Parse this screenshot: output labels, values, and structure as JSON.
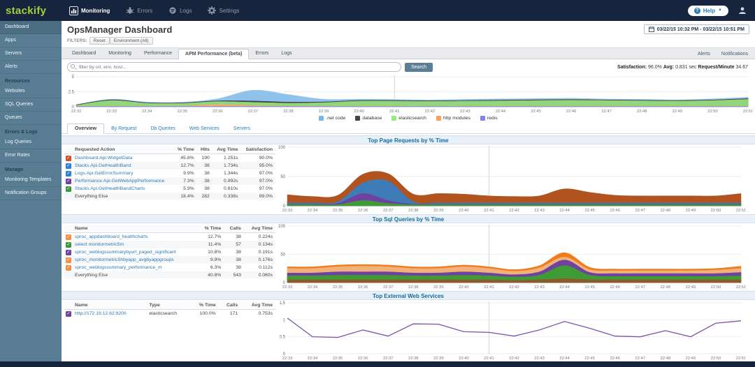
{
  "topbar": {
    "logo": "stackify",
    "nav": [
      {
        "label": "Monitoring",
        "icon": "chart-icon",
        "active": true
      },
      {
        "label": "Errors",
        "icon": "bug-icon",
        "active": false
      },
      {
        "label": "Logs",
        "icon": "logs-icon",
        "active": false
      },
      {
        "label": "Settings",
        "icon": "gear-icon",
        "active": false
      }
    ],
    "help_label": "Help"
  },
  "sidebar": {
    "items": [
      {
        "label": "Dashboard",
        "type": "link",
        "active": true
      },
      {
        "label": "Apps",
        "type": "link"
      },
      {
        "label": "Servers",
        "type": "link"
      },
      {
        "label": "Alerts",
        "type": "link"
      },
      {
        "label": "Resources",
        "type": "header"
      },
      {
        "label": "Websites",
        "type": "link"
      },
      {
        "label": "SQL Queries",
        "type": "link"
      },
      {
        "label": "Queues",
        "type": "link"
      },
      {
        "label": "Errors & Logs",
        "type": "header"
      },
      {
        "label": "Log Queries",
        "type": "link"
      },
      {
        "label": "Error Rates",
        "type": "link"
      },
      {
        "label": "Manage",
        "type": "header"
      },
      {
        "label": "Monitoring Templates",
        "type": "link"
      },
      {
        "label": "Notification Groups",
        "type": "link"
      }
    ]
  },
  "header": {
    "title": "OpsManager Dashboard",
    "date_range": "03/22/15 10:32 PM - 03/22/15 10:51 PM",
    "filters_label": "FILTERS:",
    "filter_buttons": [
      "Reset",
      "Environment (All)"
    ]
  },
  "tabs": {
    "items": [
      "Dashboard",
      "Monitoring",
      "Performance",
      "APM Performance (beta)",
      "Errors",
      "Logs"
    ],
    "active": "APM Performance (beta)",
    "right_links": [
      "Alerts",
      "Notifications"
    ]
  },
  "search": {
    "placeholder": "filter by url, env, host...",
    "button_label": "Search"
  },
  "stats": {
    "satisfaction_label": "Satisfaction:",
    "satisfaction_value": "96.0%",
    "avg_label": "Avg:",
    "avg_value": "0.831 sec",
    "rpm_label": "Request/Minute",
    "rpm_value": "34.67"
  },
  "subtabs": [
    "Overview",
    "By Request",
    "Db Queries",
    "Web Services",
    "Servers"
  ],
  "sections": [
    {
      "title": "Top Page Requests by % Time",
      "columns": [
        "Requested Action",
        "% Time",
        "Hits",
        "Avg Time",
        "Satisfaction"
      ],
      "align": [
        "l",
        "r",
        "r",
        "r",
        "r"
      ],
      "rows": [
        {
          "check": "#c9512c",
          "link": true,
          "cells": [
            "Dashboard.Api.WidgetData",
            "45.8%",
            "190",
            "1.251s",
            "90.0%"
          ]
        },
        {
          "check": "#2f7ed8",
          "link": true,
          "cells": [
            "Stacks.Api.GetHealthBand",
            "12.7%",
            "38",
            "1.734s",
            "95.0%"
          ]
        },
        {
          "check": "#2f7ed8",
          "link": true,
          "cells": [
            "Logs.Api.GetErrorSummary",
            "9.9%",
            "38",
            "1.344s",
            "97.0%"
          ]
        },
        {
          "check": "#6f42a0",
          "link": true,
          "cells": [
            "Performance.Api.GetWebAppPerformance",
            "7.3%",
            "38",
            "0.992s",
            "97.0%"
          ]
        },
        {
          "check": "#3c9a3c",
          "link": true,
          "cells": [
            "Stacks.Api.GetHealthBandCharts",
            "5.9%",
            "38",
            "0.810s",
            "97.0%"
          ]
        },
        {
          "check": null,
          "link": false,
          "cells": [
            "Everything Else",
            "18.4%",
            "282",
            "0.338s",
            "99.0%"
          ]
        }
      ]
    },
    {
      "title": "Top Sql Queries by % Time",
      "columns": [
        "Name",
        "% Time",
        "Calls",
        "Avg Time"
      ],
      "align": [
        "l",
        "r",
        "r",
        "r"
      ],
      "rows": [
        {
          "check": "#f28f43",
          "link": true,
          "cells": [
            "sproc_appdashboard_healthcharts",
            "12.7%",
            "38",
            "0.224s"
          ]
        },
        {
          "check": "#3c9a3c",
          "link": true,
          "cells": [
            "select monitormetric5m",
            "11.4%",
            "57",
            "0.134s"
          ]
        },
        {
          "check": "#6f42a0",
          "link": true,
          "cells": [
            "sproc_weblogssummarybyurl_paged_significant",
            "10.8%",
            "38",
            "0.191s"
          ]
        },
        {
          "check": "#f28f43",
          "link": true,
          "cells": [
            "sproc_monitormetric5hbyapp_avgbyappgroups",
            "9.9%",
            "38",
            "0.176s"
          ]
        },
        {
          "check": "#f28f43",
          "link": true,
          "cells": [
            "sproc_weblogssummary_performance_m",
            "6.3%",
            "38",
            "0.112s"
          ]
        },
        {
          "check": null,
          "link": false,
          "cells": [
            "Everything Else",
            "40.8%",
            "543",
            "0.060s"
          ]
        }
      ]
    },
    {
      "title": "Top External Web Services",
      "columns": [
        "Name",
        "Type",
        "% Time",
        "Calls",
        "Avg Time"
      ],
      "align": [
        "l",
        "l",
        "r",
        "r",
        "r"
      ],
      "rows": [
        {
          "check": "#6f42a0",
          "link": true,
          "cells": [
            "http://172.19.12.62:9200",
            "elasticsearch",
            "100.0%",
            "171",
            "0.753s"
          ]
        }
      ]
    }
  ],
  "chart_data": [
    {
      "id": "overview",
      "type": "area",
      "stacked": true,
      "title": "",
      "categories": [
        "22:32",
        "22:33",
        "22:34",
        "22:35",
        "22:36",
        "22:37",
        "22:38",
        "22:39",
        "22:40",
        "22:41",
        "22:42",
        "22:43",
        "22:44",
        "22:45",
        "22:46",
        "22:47",
        "22:48",
        "22:49",
        "22:50",
        "22:51"
      ],
      "ylim": [
        0,
        5
      ],
      "yticks": [
        0,
        2.5,
        5
      ],
      "cursor_x": "22:41",
      "smooth": true,
      "legend_position": "bottom",
      "legend": [
        {
          "label": ".net code",
          "color": "#7cb5ec"
        },
        {
          "label": "database",
          "color": "#434348"
        },
        {
          "label": "elasticsearch",
          "color": "#90ed7d"
        },
        {
          "label": "http modules",
          "color": "#f7a35c"
        },
        {
          "label": "redis",
          "color": "#8085e9"
        }
      ],
      "series": [
        {
          "name": "redis",
          "color": "#908fe0",
          "values": [
            0.07,
            0.07,
            0.07,
            0.07,
            0.07,
            0.07,
            0.07,
            0.07,
            0.07,
            0.07,
            0.07,
            0.07,
            0.07,
            0.07,
            0.07,
            0.07,
            0.07,
            0.07,
            0.07,
            0.07
          ]
        },
        {
          "name": "http modules",
          "color": "#f5ab6b",
          "values": [
            0.02,
            0.02,
            0.02,
            0.05,
            0.3,
            0.12,
            0.03,
            0.02,
            0.02,
            0.02,
            0.02,
            0.02,
            0.02,
            0.02,
            0.02,
            0.02,
            0.02,
            0.02,
            0.02,
            0.02
          ]
        },
        {
          "name": "elasticsearch",
          "color": "#93d57a",
          "values": [
            0.15,
            0.95,
            0.5,
            0.45,
            0.5,
            0.55,
            0.5,
            0.6,
            0.85,
            0.85,
            0.8,
            0.85,
            0.9,
            0.95,
            1.0,
            0.95,
            0.9,
            0.85,
            0.95,
            1.15
          ]
        },
        {
          "name": "database",
          "color": "#3f4045",
          "values": [
            0.08,
            0.12,
            0.1,
            0.1,
            0.12,
            0.22,
            0.18,
            0.12,
            0.12,
            0.12,
            0.1,
            0.1,
            0.12,
            0.12,
            0.12,
            0.1,
            0.1,
            0.1,
            0.1,
            0.12
          ]
        },
        {
          "name": ".net code",
          "color": "#8fc3ec",
          "values": [
            0.05,
            0.1,
            0.08,
            0.08,
            0.35,
            1.8,
            1.25,
            0.45,
            0.2,
            0.15,
            0.15,
            0.2,
            0.2,
            0.2,
            0.2,
            0.15,
            0.15,
            0.12,
            0.18,
            0.22
          ]
        }
      ]
    },
    {
      "id": "page-requests",
      "type": "area",
      "stacked": true,
      "title": "Top Page Requests by % Time",
      "categories": [
        "22:33",
        "22:34",
        "22:35",
        "22:36",
        "22:37",
        "22:38",
        "22:39",
        "22:40",
        "22:41",
        "22:42",
        "22:43",
        "22:44",
        "22:45",
        "22:46",
        "22:47",
        "22:48",
        "22:49",
        "22:50",
        "22:51"
      ],
      "ylim": [
        0,
        100
      ],
      "yticks": [
        0,
        50,
        100
      ],
      "cursor_x": "22:41",
      "smooth": true,
      "series": [
        {
          "name": "Stacks.Api.GetHealthBandCharts",
          "color": "#3f9c35",
          "values": [
            2,
            2,
            2,
            9,
            4,
            2,
            2,
            2,
            2,
            2,
            2,
            2,
            2,
            2,
            2,
            2,
            2,
            2,
            2
          ]
        },
        {
          "name": "Performance.Api.GetWebAppPerformance",
          "color": "#6f42a0",
          "values": [
            1,
            1,
            2,
            12,
            5,
            1,
            1,
            1,
            1,
            1,
            1,
            1,
            1,
            1,
            1,
            1,
            1,
            1,
            1
          ]
        },
        {
          "name": "Stacks.Api.GetHealthBand",
          "color": "#3e7cb8",
          "values": [
            2,
            2,
            3,
            18,
            33,
            4,
            2,
            2,
            2,
            2,
            2,
            2,
            2,
            2,
            2,
            2,
            2,
            2,
            2
          ]
        },
        {
          "name": "Dashboard.Api.WidgetData",
          "color": "#b0531f",
          "values": [
            14,
            11,
            11,
            15,
            13,
            13,
            16,
            15,
            12,
            11,
            12,
            24,
            18,
            13,
            12,
            12,
            12,
            12,
            16
          ]
        }
      ]
    },
    {
      "id": "sql-queries",
      "type": "area",
      "stacked": true,
      "title": "Top Sql Queries by % Time",
      "categories": [
        "22:33",
        "22:34",
        "22:35",
        "22:36",
        "22:37",
        "22:38",
        "22:39",
        "22:40",
        "22:41",
        "22:42",
        "22:43",
        "22:44",
        "22:45",
        "22:46",
        "22:47",
        "22:48",
        "22:49",
        "22:50",
        "22:51"
      ],
      "ylim": [
        0,
        100
      ],
      "yticks": [
        0,
        50,
        100
      ],
      "cursor_x": "22:41",
      "smooth": true,
      "series": [
        {
          "name": "Everything Else",
          "color": "#8c5a2b",
          "values": [
            5,
            5,
            5,
            5,
            5,
            5,
            5,
            5,
            5,
            4,
            5,
            7,
            5,
            5,
            5,
            5,
            5,
            5,
            5
          ]
        },
        {
          "name": "select monitormetric5m",
          "color": "#3f9c35",
          "values": [
            7,
            7,
            8,
            8,
            8,
            7,
            7,
            8,
            7,
            6,
            8,
            23,
            8,
            6,
            6,
            6,
            6,
            6,
            7
          ]
        },
        {
          "name": "sproc_weblogssummarybyurl_paged_significant",
          "color": "#6f42a0",
          "values": [
            5,
            5,
            6,
            6,
            6,
            5,
            5,
            6,
            5,
            4,
            6,
            10,
            5,
            5,
            5,
            5,
            5,
            5,
            6
          ]
        },
        {
          "name": "sproc_monitormetric5hbyapp_avgbyappgroups",
          "color": "#f0b27a",
          "values": [
            8,
            8,
            9,
            10,
            9,
            8,
            8,
            9,
            8,
            6,
            7,
            5,
            5,
            5,
            5,
            5,
            5,
            6,
            7
          ]
        },
        {
          "name": "sproc_appdashboard_healthcharts",
          "color": "#ef7d20",
          "values": [
            3,
            3,
            3,
            3,
            3,
            3,
            3,
            3,
            3,
            3,
            4,
            8,
            4,
            3,
            3,
            3,
            3,
            3,
            4
          ]
        }
      ]
    },
    {
      "id": "web-services",
      "type": "line",
      "stacked": false,
      "title": "Top External Web Services",
      "categories": [
        "22:33",
        "22:34",
        "22:35",
        "22:36",
        "22:37",
        "22:38",
        "22:39",
        "22:40",
        "22:41",
        "22:42",
        "22:43",
        "22:44",
        "22:45",
        "22:46",
        "22:47",
        "22:48",
        "22:49",
        "22:50",
        "22:51"
      ],
      "ylim": [
        0,
        1.5
      ],
      "yticks": [
        0,
        0.5,
        1,
        1.5
      ],
      "cursor_x": "22:41",
      "smooth": false,
      "series": [
        {
          "name": "http://172.19.12.62:9200",
          "color": "#7b52a8",
          "values": [
            1.05,
            0.5,
            0.48,
            0.7,
            0.52,
            0.88,
            0.87,
            0.65,
            0.63,
            0.52,
            0.7,
            0.95,
            0.75,
            0.52,
            0.5,
            0.68,
            0.5,
            0.9,
            0.97
          ]
        }
      ]
    }
  ]
}
